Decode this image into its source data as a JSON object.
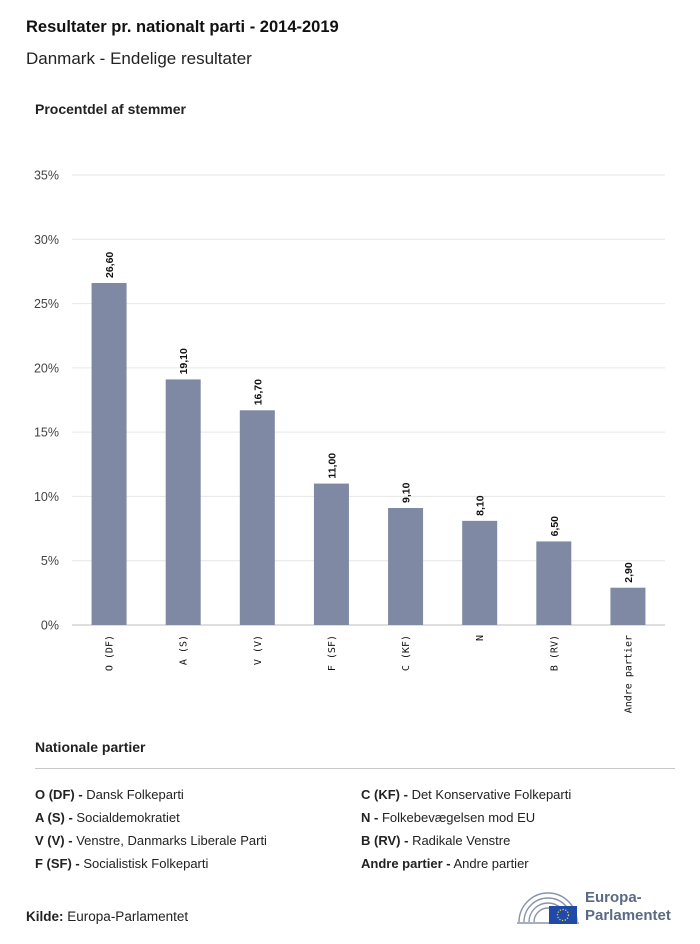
{
  "header": {
    "title": "Resultater pr. nationalt parti - 2014-2019",
    "subtitle": "Danmark - Endelige resultater"
  },
  "chart_data": {
    "type": "bar",
    "ylabel": "Procentdel af stemmer",
    "categories": [
      "O (DF)",
      "A (S)",
      "V (V)",
      "F (SF)",
      "C (KF)",
      "N",
      "B (RV)",
      "Andre partier"
    ],
    "values": [
      26.6,
      19.1,
      16.7,
      11.0,
      9.1,
      8.1,
      6.5,
      2.9
    ],
    "value_labels": [
      "26,60",
      "19,10",
      "16,70",
      "11,00",
      "9,10",
      "8,10",
      "6,50",
      "2,90"
    ],
    "ylim": [
      0,
      35
    ],
    "yticks": [
      "0%",
      "5%",
      "10%",
      "15%",
      "20%",
      "25%",
      "30%",
      "35%"
    ],
    "grid": true,
    "bar_color": "#7f89a4"
  },
  "legend": {
    "title": "Nationale partier",
    "items": [
      {
        "code": "O (DF) -",
        "name": "Dansk Folkeparti"
      },
      {
        "code": "A (S) -",
        "name": "Socialdemokratiet"
      },
      {
        "code": "V (V) -",
        "name": "Venstre, Danmarks Liberale Parti"
      },
      {
        "code": "F (SF) -",
        "name": "Socialistisk Folkeparti"
      },
      {
        "code": "C (KF) -",
        "name": " Det Konservative Folkeparti"
      },
      {
        "code": "N -",
        "name": "Folkebevægelsen mod EU"
      },
      {
        "code": "B (RV) -",
        "name": "Radikale Venstre"
      },
      {
        "code": "Andre partier -",
        "name": "Andre partier"
      }
    ]
  },
  "footer": {
    "source_label": "Kilde:",
    "source_value": "Europa-Parlamentet",
    "logo_line1": "Europa-",
    "logo_line2": "Parlamentet",
    "logo_icon": "european-parliament-icon"
  }
}
